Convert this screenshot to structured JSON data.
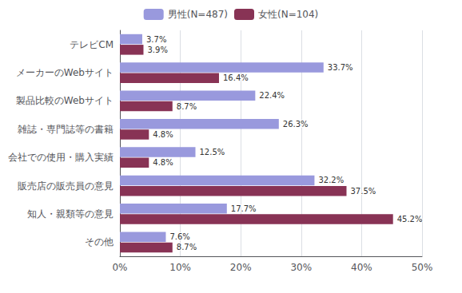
{
  "chart_data": {
    "type": "bar",
    "orientation": "horizontal",
    "categories": [
      "テレビCM",
      "メーカーのWebサイト",
      "製品比較のWebサイト",
      "雑誌・専門誌等の書籍",
      "会社での使用・購入実績",
      "販売店の販売員の意見",
      "知人・親類等の意見",
      "その他"
    ],
    "series": [
      {
        "name": "男性(N=487)",
        "color": "#9999dd",
        "values": [
          3.7,
          33.7,
          22.4,
          26.3,
          12.5,
          32.2,
          17.7,
          7.6
        ],
        "value_labels": [
          "3.7%",
          "33.7%",
          "22.4%",
          "26.3%",
          "12.5%",
          "32.2%",
          "17.7%",
          "7.6%"
        ]
      },
      {
        "name": "女性(N=104)",
        "color": "#883355",
        "values": [
          3.9,
          16.4,
          8.7,
          4.8,
          4.8,
          37.5,
          45.2,
          8.7
        ],
        "value_labels": [
          "3.9%",
          "16.4%",
          "8.7%",
          "4.8%",
          "4.8%",
          "37.5%",
          "45.2%",
          "8.7%"
        ]
      }
    ],
    "xlim": [
      0,
      50
    ],
    "xticks": [
      {
        "value": 0,
        "label": "0%"
      },
      {
        "value": 10,
        "label": "10%"
      },
      {
        "value": 20,
        "label": "20%"
      },
      {
        "value": 30,
        "label": "30%"
      },
      {
        "value": 40,
        "label": "40%"
      },
      {
        "value": 50,
        "label": "50%"
      }
    ],
    "grid": true,
    "legend": "top",
    "data_labels": true
  }
}
